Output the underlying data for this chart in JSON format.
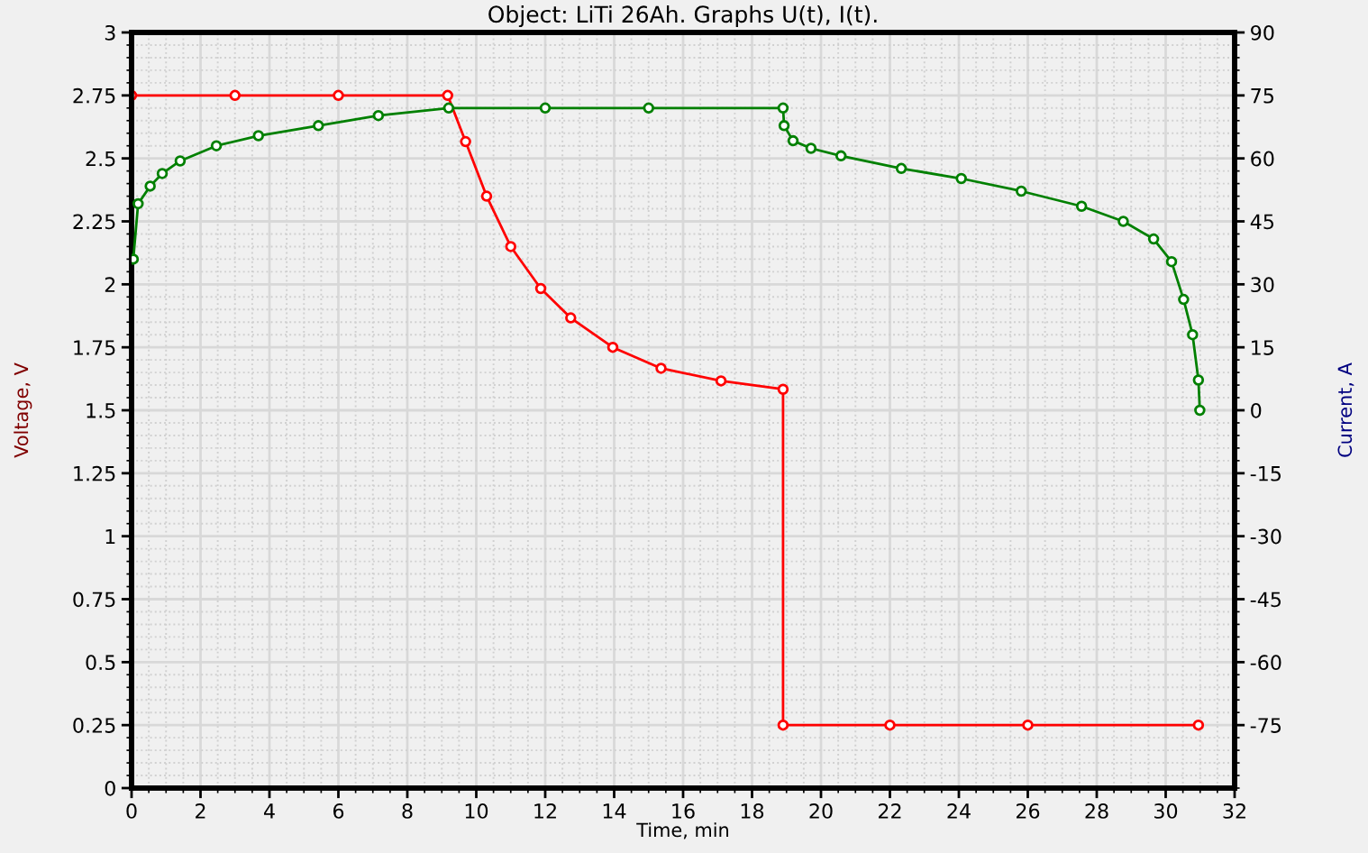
{
  "chart_data": {
    "type": "line",
    "title": "Object: LiTi 26Ah. Graphs U(t), I(t).",
    "xlabel": "Time, min",
    "ylabel": "Voltage, V",
    "y2label": "Current, A",
    "xlim": [
      0,
      32
    ],
    "xticks": [
      0,
      2,
      4,
      6,
      8,
      10,
      12,
      14,
      16,
      18,
      20,
      22,
      24,
      26,
      28,
      30,
      32
    ],
    "ylim": [
      0,
      3
    ],
    "yticks": [
      0,
      0.25,
      0.5,
      0.75,
      1,
      1.25,
      1.5,
      1.75,
      2,
      2.25,
      2.5,
      2.75,
      3
    ],
    "y2lim": [
      -90,
      90
    ],
    "y2ticks": [
      -75,
      -60,
      -45,
      -30,
      -15,
      0,
      15,
      30,
      45,
      60,
      75,
      90
    ],
    "grid": true,
    "marker": "circle",
    "line_style": "solid",
    "series": [
      {
        "color": "#008000",
        "x": [
          0.05,
          0.19,
          0.54,
          0.89,
          1.41,
          2.46,
          3.68,
          5.42,
          7.16,
          9.2,
          12,
          15,
          18.9,
          18.93,
          19.19,
          19.71,
          20.58,
          22.33,
          24.07,
          25.81,
          27.56,
          28.77,
          29.65,
          30.17,
          30.52,
          30.78,
          30.95,
          30.99
        ],
        "values": [
          2.1,
          2.32,
          2.39,
          2.44,
          2.49,
          2.55,
          2.59,
          2.63,
          2.67,
          2.7,
          2.7,
          2.7,
          2.7,
          2.63,
          2.57,
          2.54,
          2.51,
          2.46,
          2.42,
          2.37,
          2.31,
          2.25,
          2.18,
          2.09,
          1.94,
          1.8,
          1.62,
          1.5
        ]
      },
      {
        "color": "#ff0000",
        "axis": "y2",
        "x": [
          0,
          3,
          6,
          9.17,
          9.69,
          10.3,
          11.0,
          11.87,
          12.74,
          13.96,
          15.36,
          17.1,
          18.9,
          18.9,
          22,
          26,
          30.95
        ],
        "values": [
          75,
          75,
          75,
          75,
          64,
          51,
          39,
          29,
          22,
          15,
          10,
          7,
          5,
          -75,
          -75,
          -75,
          -75
        ]
      }
    ]
  }
}
